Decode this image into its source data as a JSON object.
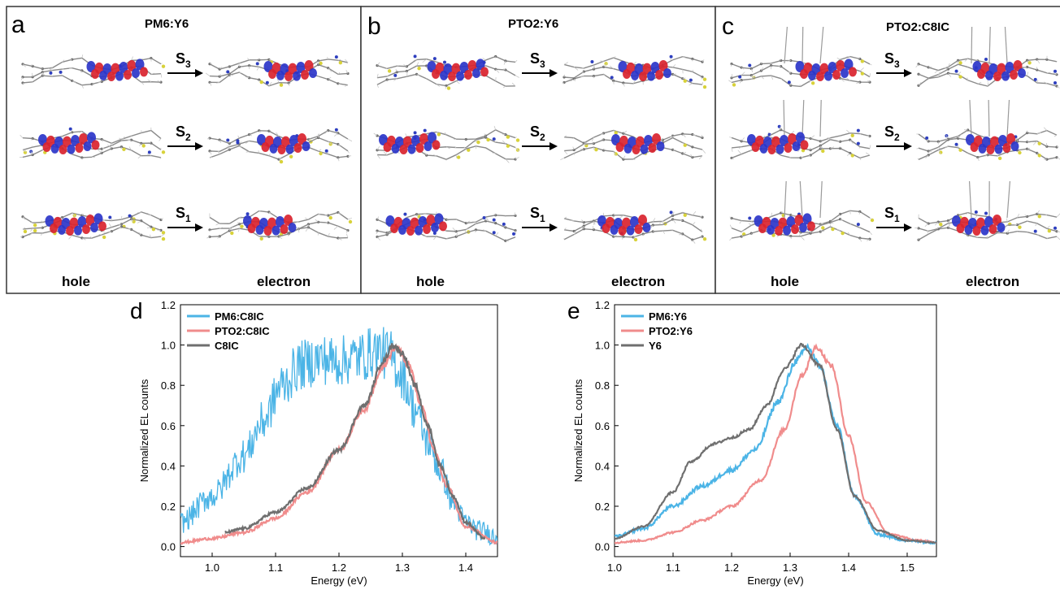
{
  "panels_top": [
    {
      "letter": "a",
      "title": "PM6:Y6",
      "hole_label": "hole",
      "electron_label": "electron",
      "states": [
        "S3",
        "S2",
        "S1"
      ]
    },
    {
      "letter": "b",
      "title": "PTO2:Y6",
      "hole_label": "hole",
      "electron_label": "electron",
      "states": [
        "S3",
        "S2",
        "S1"
      ]
    },
    {
      "letter": "c",
      "title": "PTO2:C8IC",
      "hole_label": "hole",
      "electron_label": "electron",
      "states": [
        "S3",
        "S2",
        "S1"
      ]
    }
  ],
  "chart_data": [
    {
      "panel": "d",
      "type": "line",
      "xlabel": "Energy (eV)",
      "ylabel": "Normalized EL counts",
      "xlim": [
        0.95,
        1.45
      ],
      "ylim": [
        -0.05,
        1.2
      ],
      "xticks": [
        "1.0",
        "1.1",
        "1.2",
        "1.3",
        "1.4"
      ],
      "yticks": [
        "0.0",
        "0.2",
        "0.4",
        "0.6",
        "0.8",
        "1.0",
        "1.2"
      ],
      "legend": "top-left",
      "grid": false,
      "series": [
        {
          "name": "PM6:C8IC",
          "color": "#4bb4e6",
          "noise": 0.09,
          "x": [
            0.95,
            1.0,
            1.05,
            1.08,
            1.11,
            1.14,
            1.17,
            1.2,
            1.23,
            1.26,
            1.28,
            1.3,
            1.32,
            1.34,
            1.36,
            1.38,
            1.4,
            1.42,
            1.45
          ],
          "y": [
            0.12,
            0.25,
            0.45,
            0.62,
            0.8,
            0.9,
            0.93,
            0.92,
            0.94,
            0.97,
            0.95,
            0.85,
            0.68,
            0.52,
            0.38,
            0.22,
            0.12,
            0.08,
            0.05
          ]
        },
        {
          "name": "PTO2:C8IC",
          "color": "#f08c8c",
          "noise": 0.012,
          "x": [
            0.95,
            1.0,
            1.05,
            1.1,
            1.15,
            1.2,
            1.24,
            1.27,
            1.29,
            1.31,
            1.33,
            1.35,
            1.37,
            1.4,
            1.45
          ],
          "y": [
            0.02,
            0.04,
            0.07,
            0.14,
            0.27,
            0.48,
            0.68,
            0.9,
            0.99,
            0.9,
            0.7,
            0.48,
            0.3,
            0.1,
            0.02
          ]
        },
        {
          "name": "C8IC",
          "color": "#6f6f6f",
          "noise": 0.01,
          "x": [
            1.02,
            1.05,
            1.1,
            1.15,
            1.2,
            1.24,
            1.27,
            1.285,
            1.3,
            1.32,
            1.34,
            1.36,
            1.38,
            1.4,
            1.43
          ],
          "y": [
            0.07,
            0.09,
            0.17,
            0.29,
            0.48,
            0.7,
            0.92,
            1.0,
            0.96,
            0.8,
            0.6,
            0.4,
            0.25,
            0.12,
            0.04
          ]
        }
      ]
    },
    {
      "panel": "e",
      "type": "line",
      "xlabel": "Energy (eV)",
      "ylabel": "Normalized EL counts",
      "xlim": [
        1.0,
        1.55
      ],
      "ylim": [
        -0.05,
        1.2
      ],
      "xticks": [
        "1.0",
        "1.1",
        "1.2",
        "1.3",
        "1.4",
        "1.5"
      ],
      "yticks": [
        "0.0",
        "0.2",
        "0.4",
        "0.6",
        "0.8",
        "1.0",
        "1.2"
      ],
      "legend": "top-left",
      "grid": false,
      "series": [
        {
          "name": "PM6:Y6",
          "color": "#4bb4e6",
          "noise": 0.012,
          "x": [
            1.0,
            1.05,
            1.1,
            1.15,
            1.2,
            1.24,
            1.28,
            1.31,
            1.33,
            1.35,
            1.38,
            1.41,
            1.45,
            1.5,
            1.55
          ],
          "y": [
            0.05,
            0.09,
            0.2,
            0.3,
            0.38,
            0.48,
            0.72,
            0.92,
            0.99,
            0.9,
            0.6,
            0.25,
            0.06,
            0.03,
            0.02
          ]
        },
        {
          "name": "PTO2:Y6",
          "color": "#f08c8c",
          "noise": 0.008,
          "x": [
            1.0,
            1.05,
            1.1,
            1.15,
            1.2,
            1.25,
            1.29,
            1.32,
            1.345,
            1.37,
            1.4,
            1.43,
            1.47,
            1.52,
            1.55
          ],
          "y": [
            0.02,
            0.03,
            0.07,
            0.13,
            0.2,
            0.33,
            0.58,
            0.85,
            0.99,
            0.9,
            0.55,
            0.22,
            0.06,
            0.03,
            0.02
          ]
        },
        {
          "name": "Y6",
          "color": "#6f6f6f",
          "noise": 0.006,
          "x": [
            1.0,
            1.05,
            1.1,
            1.13,
            1.17,
            1.2,
            1.23,
            1.26,
            1.29,
            1.32,
            1.35,
            1.38,
            1.41,
            1.45,
            1.5,
            1.55
          ],
          "y": [
            0.04,
            0.1,
            0.27,
            0.42,
            0.51,
            0.54,
            0.58,
            0.7,
            0.88,
            1.0,
            0.9,
            0.58,
            0.25,
            0.08,
            0.03,
            0.02
          ]
        }
      ]
    }
  ]
}
